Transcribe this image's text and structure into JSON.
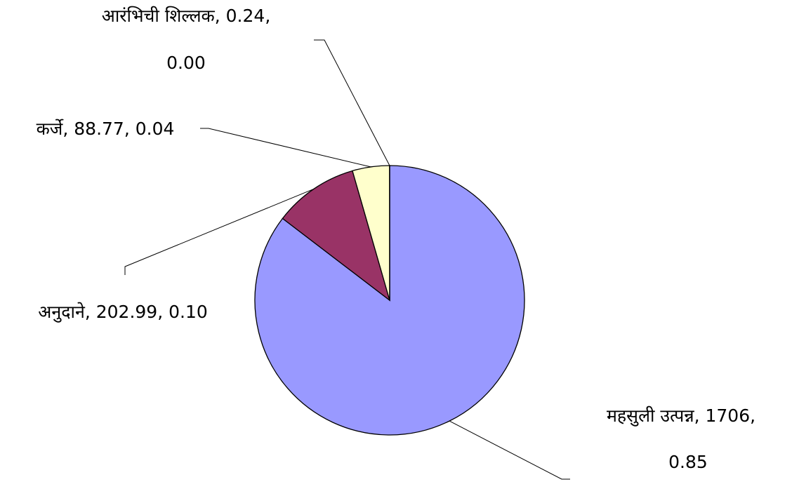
{
  "chart_data": {
    "type": "pie",
    "categories": [
      "महसुली उत्पन्न",
      "अनुदाने",
      "कर्जे",
      "आरंभिची शिल्लक"
    ],
    "values": [
      1706,
      202.99,
      88.77,
      0.24
    ],
    "colors": [
      "#9999ff",
      "#993366",
      "#ffffcc",
      "#ffffcc"
    ],
    "labels": [
      [
        "महसुली उत्पन्न, 1706,",
        "0.85"
      ],
      [
        "अनुदाने, 202.99, 0.10"
      ],
      [
        "कर्जे, 88.77, 0.04"
      ],
      [
        "आरंभिची शिल्लक, 0.24,",
        "0.00"
      ]
    ]
  }
}
